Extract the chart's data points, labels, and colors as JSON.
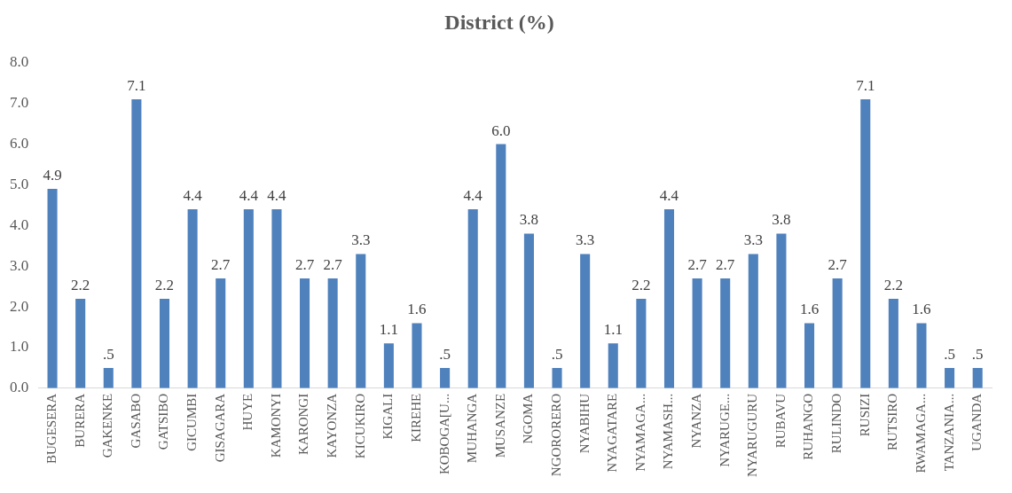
{
  "chart_data": {
    "type": "bar",
    "title": "District (%)",
    "categories": [
      "BUGESERA",
      "BURERA",
      "GAKENKE",
      "GASABO",
      "GATSIBO",
      "GICUMBI",
      "GISAGARA",
      "HUYE",
      "KAMONYI",
      "KARONGI",
      "KAYONZA",
      "KICUKIRO",
      "KIGALI",
      "KIREHE",
      "KOBOGA[U...",
      "MUHANGA",
      "MUSANZE",
      "NGOMA",
      "NGORORERO",
      "NYABIHU",
      "NYAGATARE",
      "NYAMAGA...",
      "NYAMASH...",
      "NYANZA",
      "NYARUGE...",
      "NYARUGURU",
      "RUBAVU",
      "RUHANGO",
      "RULINDO",
      "RUSIZI",
      "RUTSIRO",
      "RWAMAGA...",
      "TANZANIA...",
      "UGANDA"
    ],
    "values": [
      4.9,
      2.2,
      0.5,
      7.1,
      2.2,
      4.4,
      2.7,
      4.4,
      4.4,
      2.7,
      2.7,
      3.3,
      1.1,
      1.6,
      0.5,
      4.4,
      6.0,
      3.8,
      0.5,
      3.3,
      1.1,
      2.2,
      4.4,
      2.7,
      2.7,
      3.3,
      3.8,
      1.6,
      2.7,
      7.1,
      2.2,
      1.6,
      0.5,
      0.5
    ],
    "value_labels": [
      "4.9",
      "2.2",
      ".5",
      "7.1",
      "2.2",
      "4.4",
      "2.7",
      "4.4",
      "4.4",
      "2.7",
      "2.7",
      "3.3",
      "1.1",
      "1.6",
      ".5",
      "4.4",
      "6.0",
      "3.8",
      ".5",
      "3.3",
      "1.1",
      "2.2",
      "4.4",
      "2.7",
      "2.7",
      "3.3",
      "3.8",
      "1.6",
      "2.7",
      "7.1",
      "2.2",
      "1.6",
      ".5",
      ".5"
    ],
    "color": "#4f81bd",
    "ylim": [
      0,
      8
    ],
    "yticks": [
      {
        "value": 0,
        "label": "0.0"
      },
      {
        "value": 1,
        "label": "1.0"
      },
      {
        "value": 2,
        "label": "2.0"
      },
      {
        "value": 3,
        "label": "3.0"
      },
      {
        "value": 4,
        "label": "4.0"
      },
      {
        "value": 5,
        "label": "5.0"
      },
      {
        "value": 6,
        "label": "6.0"
      },
      {
        "value": 7,
        "label": "7.0"
      },
      {
        "value": 8,
        "label": "8.0"
      }
    ],
    "grid": false,
    "legend": false
  }
}
